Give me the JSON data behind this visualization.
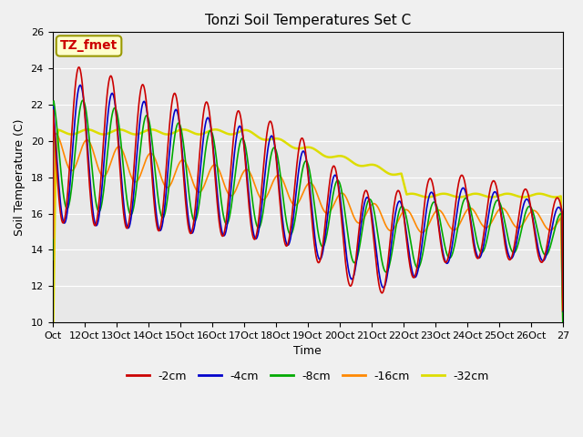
{
  "title": "Tonzi Soil Temperatures Set C",
  "xlabel": "Time",
  "ylabel": "Soil Temperature (C)",
  "ylim": [
    10,
    26
  ],
  "yticks": [
    10,
    12,
    14,
    16,
    18,
    20,
    22,
    24,
    26
  ],
  "x_labels": [
    "Oct",
    "12Oct",
    "13Oct",
    "14Oct",
    "15Oct",
    "16Oct",
    "17Oct",
    "18Oct",
    "19Oct",
    "20Oct",
    "21Oct",
    "22Oct",
    "23Oct",
    "24Oct",
    "25Oct",
    "26Oct",
    "27"
  ],
  "annotation_text": "TZ_fmet",
  "annotation_bg": "#ffffcc",
  "annotation_fg": "#cc0000",
  "fig_bg": "#f0f0f0",
  "ax_bg": "#e8e8e8",
  "series_colors": [
    "#cc0000",
    "#0000cc",
    "#00aa00",
    "#ff8800",
    "#dddd00"
  ],
  "series_labels": [
    "-2cm",
    "-4cm",
    "-8cm",
    "-16cm",
    "-32cm"
  ],
  "series_lw": [
    1.2,
    1.2,
    1.2,
    1.2,
    1.8
  ],
  "grid_color": "#ffffff",
  "tick_fontsize": 8,
  "title_fontsize": 11,
  "label_fontsize": 9,
  "legend_fontsize": 9
}
